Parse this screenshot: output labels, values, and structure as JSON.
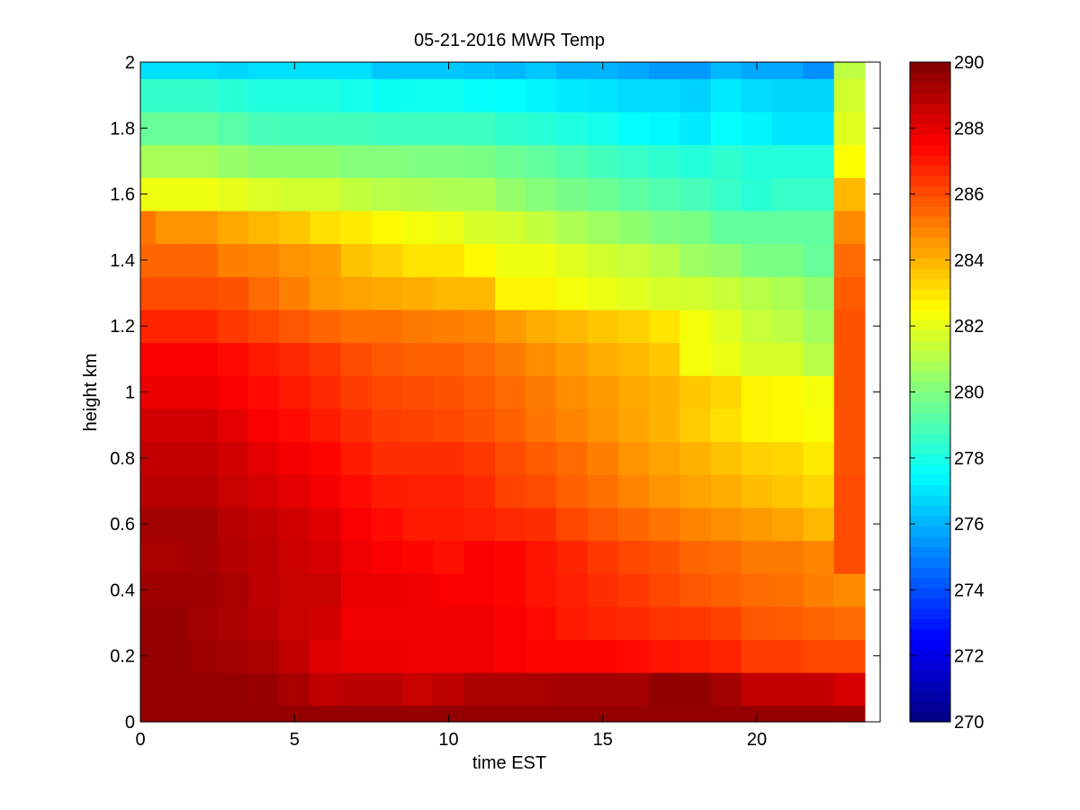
{
  "chart_data": {
    "type": "heatmap",
    "title": "05-21-2016 MWR Temp",
    "xlabel": "time EST",
    "ylabel": "height km",
    "xlim": [
      0,
      24
    ],
    "ylim": [
      0,
      2
    ],
    "x_ticks": [
      0,
      5,
      10,
      15,
      20
    ],
    "y_ticks": [
      0,
      0.2,
      0.4,
      0.6,
      0.8,
      1,
      1.2,
      1.4,
      1.6,
      1.8,
      2
    ],
    "colorbar": {
      "min": 270,
      "max": 290,
      "ticks": [
        270,
        272,
        274,
        276,
        278,
        280,
        282,
        284,
        286,
        288,
        290
      ],
      "colormap": "jet"
    },
    "x_centers": [
      0,
      1,
      2,
      3,
      4,
      5,
      6,
      7,
      8,
      9,
      10,
      11,
      12,
      13,
      14,
      15,
      16,
      17,
      18,
      19,
      20,
      21,
      22,
      23
    ],
    "y_centers": [
      0,
      0.05,
      0.1,
      0.2,
      0.3,
      0.4,
      0.5,
      0.6,
      0.7,
      0.8,
      0.9,
      1.0,
      1.1,
      1.2,
      1.3,
      1.4,
      1.5,
      1.6,
      1.7,
      1.8,
      1.9,
      2.0
    ],
    "y_edges": [
      0,
      0.05,
      0.15,
      0.25,
      0.35,
      0.45,
      0.55,
      0.65,
      0.75,
      0.85,
      0.95,
      1.05,
      1.15,
      1.25,
      1.35,
      1.45,
      1.55,
      1.65,
      1.75,
      1.85,
      1.95,
      2.0
    ],
    "x_range_edges": [
      -0.5,
      23.5
    ],
    "cell_values_note": "rows ordered bottom (0 km) to top (2 km); columns ordered 0 to 23 h",
    "values": [
      [
        289.6,
        289.6,
        289.6,
        289.6,
        289.6,
        289.6,
        289.6,
        289.6,
        289.6,
        289.6,
        289.6,
        289.6,
        289.6,
        289.6,
        289.6,
        289.6,
        289.6,
        289.6,
        289.6,
        289.6,
        289.6,
        289.6,
        289.6,
        289.5
      ],
      [
        289.6,
        289.6,
        289.6,
        289.6,
        289.5,
        289.2,
        288.7,
        288.9,
        288.9,
        288.6,
        288.8,
        289.1,
        289.1,
        289.2,
        289.3,
        289.3,
        289.3,
        289.7,
        289.7,
        289.3,
        288.7,
        288.7,
        288.7,
        288.3
      ],
      [
        289.6,
        289.6,
        289.4,
        289.3,
        289.1,
        288.7,
        288.1,
        287.9,
        287.9,
        287.8,
        287.8,
        287.8,
        287.6,
        287.4,
        287.4,
        287.4,
        287.3,
        287.1,
        287.0,
        286.8,
        286.3,
        286.3,
        286.1,
        286.1
      ],
      [
        289.6,
        289.6,
        289.3,
        289.1,
        288.9,
        288.6,
        288.4,
        287.8,
        287.8,
        287.8,
        287.8,
        287.8,
        287.6,
        287.3,
        287.0,
        286.8,
        286.7,
        286.5,
        286.4,
        286.2,
        285.8,
        285.7,
        285.5,
        285.4
      ],
      [
        289.4,
        289.4,
        289.4,
        289.2,
        288.8,
        288.6,
        288.6,
        287.9,
        287.9,
        287.8,
        287.6,
        287.6,
        287.4,
        287.1,
        286.9,
        286.6,
        286.4,
        286.1,
        285.8,
        285.6,
        285.4,
        285.3,
        285.0,
        284.8
      ],
      [
        289.2,
        289.2,
        289.3,
        289.0,
        288.8,
        288.5,
        288.3,
        287.8,
        287.6,
        287.4,
        287.2,
        287.6,
        287.4,
        287.1,
        286.8,
        286.4,
        286.1,
        285.9,
        285.5,
        285.4,
        285.1,
        285.1,
        284.9,
        286.0
      ],
      [
        289.3,
        289.3,
        289.3,
        288.9,
        288.7,
        288.4,
        288.1,
        287.6,
        287.3,
        287.0,
        287.0,
        286.9,
        286.7,
        286.6,
        286.1,
        285.8,
        285.5,
        285.2,
        284.9,
        284.7,
        284.5,
        284.3,
        283.9,
        286.0
      ],
      [
        288.9,
        288.9,
        288.9,
        288.6,
        288.3,
        288.0,
        287.7,
        287.3,
        287.0,
        286.9,
        286.9,
        286.7,
        286.2,
        286.0,
        285.6,
        285.3,
        284.9,
        284.6,
        284.3,
        284.1,
        283.8,
        283.6,
        283.3,
        286.0
      ],
      [
        288.7,
        288.7,
        288.7,
        288.4,
        288.0,
        287.7,
        287.4,
        287.0,
        286.6,
        286.6,
        286.6,
        286.4,
        286.0,
        285.7,
        285.4,
        285.0,
        284.6,
        284.3,
        284.0,
        283.7,
        283.4,
        283.3,
        282.9,
        285.9
      ],
      [
        288.4,
        288.4,
        288.4,
        288.0,
        287.6,
        287.3,
        287.0,
        286.6,
        286.3,
        286.2,
        286.1,
        285.9,
        285.6,
        285.2,
        284.9,
        284.6,
        284.3,
        284.0,
        283.5,
        283.1,
        282.7,
        282.6,
        282.4,
        285.9
      ],
      [
        287.9,
        287.9,
        287.9,
        287.6,
        287.3,
        287.0,
        286.7,
        286.3,
        286.1,
        286.0,
        285.9,
        285.7,
        285.4,
        285.1,
        284.7,
        284.5,
        284.2,
        284.0,
        283.6,
        283.3,
        282.7,
        282.6,
        282.3,
        285.9
      ],
      [
        287.6,
        287.6,
        287.6,
        287.3,
        287.0,
        286.7,
        286.4,
        286.0,
        285.8,
        285.6,
        285.6,
        285.4,
        285.1,
        284.7,
        284.4,
        284.1,
        283.9,
        283.6,
        282.3,
        282.1,
        281.7,
        281.7,
        281.1,
        285.9
      ],
      [
        286.8,
        286.8,
        286.8,
        286.4,
        286.1,
        285.8,
        285.5,
        285.3,
        285.3,
        285.1,
        285.0,
        284.9,
        284.5,
        284.1,
        283.9,
        283.6,
        283.4,
        283.0,
        282.3,
        281.9,
        281.4,
        281.2,
        280.7,
        285.9
      ],
      [
        286.0,
        286.0,
        286.0,
        285.9,
        285.4,
        285.0,
        284.5,
        284.3,
        284.2,
        284.1,
        283.9,
        283.9,
        282.7,
        282.7,
        282.3,
        282.1,
        281.9,
        281.7,
        281.6,
        281.4,
        281.1,
        280.9,
        280.4,
        285.7
      ],
      [
        285.5,
        285.5,
        285.5,
        285.0,
        284.9,
        284.6,
        284.4,
        283.7,
        283.4,
        283.0,
        283.0,
        282.6,
        282.2,
        282.2,
        281.9,
        281.6,
        281.4,
        281.1,
        280.6,
        280.4,
        279.9,
        279.9,
        279.5,
        285.4
      ],
      [
        285.2,
        284.6,
        284.6,
        284.2,
        283.9,
        283.6,
        283.1,
        282.9,
        282.6,
        282.3,
        282.1,
        281.7,
        281.6,
        281.3,
        280.9,
        280.6,
        280.3,
        280.0,
        279.9,
        279.4,
        279.4,
        279.4,
        279.4,
        284.8
      ],
      [
        282.2,
        282.2,
        282.2,
        282.0,
        281.8,
        281.6,
        281.6,
        281.3,
        281.1,
        281.0,
        280.9,
        280.9,
        280.4,
        280.1,
        279.8,
        279.6,
        279.3,
        279.1,
        278.9,
        278.6,
        278.3,
        278.6,
        278.6,
        283.9
      ],
      [
        280.8,
        280.8,
        280.8,
        280.5,
        280.3,
        280.3,
        280.3,
        280.1,
        280.1,
        280.0,
        280.0,
        279.9,
        279.6,
        279.4,
        279.1,
        278.8,
        278.6,
        278.4,
        278.2,
        278.4,
        278.2,
        278.2,
        278.2,
        282.5
      ],
      [
        279.5,
        279.5,
        279.5,
        279.2,
        278.9,
        278.8,
        278.8,
        278.8,
        278.7,
        278.7,
        278.7,
        278.7,
        278.4,
        278.3,
        278.1,
        277.9,
        277.6,
        277.4,
        277.1,
        277.6,
        277.3,
        277.0,
        277.0,
        281.9
      ],
      [
        278.5,
        278.5,
        278.5,
        278.3,
        278.1,
        278.1,
        278.1,
        277.9,
        277.7,
        277.8,
        277.8,
        277.6,
        277.5,
        277.3,
        277.1,
        277.0,
        276.8,
        276.8,
        276.6,
        277.1,
        276.8,
        276.7,
        276.7,
        281.6
      ],
      [
        276.9,
        276.9,
        276.9,
        276.7,
        276.9,
        276.9,
        276.9,
        276.9,
        276.4,
        276.4,
        276.4,
        276.3,
        276.1,
        276.4,
        276.0,
        276.0,
        275.8,
        275.5,
        275.5,
        276.1,
        275.8,
        275.8,
        275.3,
        281.2
      ],
      [
        276.0,
        276.0,
        275.9,
        275.9,
        275.9,
        275.9,
        275.9,
        276.0,
        275.6,
        275.6,
        275.6,
        275.6,
        275.6,
        275.6,
        275.6,
        275.4,
        275.2,
        274.8,
        274.4,
        274.9,
        275.2,
        275.2,
        275.2,
        280.2
      ]
    ]
  }
}
